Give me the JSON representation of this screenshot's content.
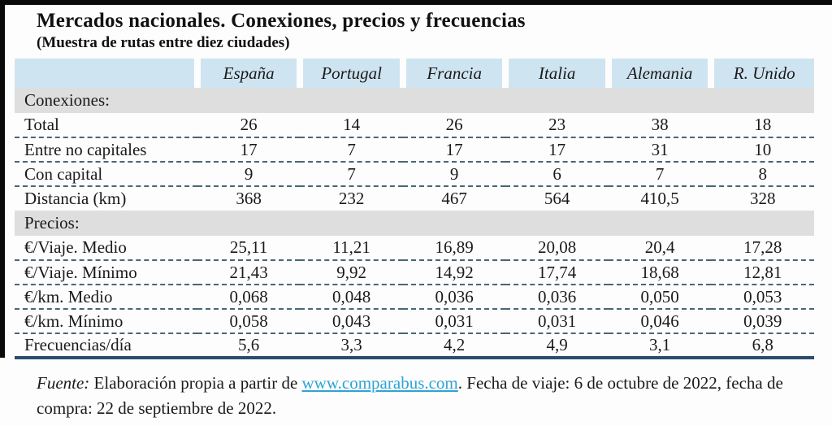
{
  "title": "Mercados nacionales. Conexiones, precios y frecuencias",
  "subtitle": "(Muestra de rutas entre diez ciudades)",
  "table": {
    "columns": [
      "España",
      "Portugal",
      "Francia",
      "Italia",
      "Alemania",
      "R. Unido"
    ],
    "rows": {
      "conexiones_header": "Conexiones:",
      "total": {
        "label": "Total",
        "values": [
          "26",
          "14",
          "26",
          "23",
          "38",
          "18"
        ]
      },
      "entre_no_capitales": {
        "label": "Entre no capitales",
        "values": [
          "17",
          "7",
          "17",
          "17",
          "31",
          "10"
        ]
      },
      "con_capital": {
        "label": "Con capital",
        "values": [
          "9",
          "7",
          "9",
          "6",
          "7",
          "8"
        ]
      },
      "distancia": {
        "label": "Distancia (km)",
        "values": [
          "368",
          "232",
          "467",
          "564",
          "410,5",
          "328"
        ]
      },
      "precios_header": "Precios:",
      "viaje_medio": {
        "label": "€/Viaje. Medio",
        "values": [
          "25,11",
          "11,21",
          "16,89",
          "20,08",
          "20,4",
          "17,28"
        ]
      },
      "viaje_minimo": {
        "label": "€/Viaje. Mínimo",
        "values": [
          "21,43",
          "9,92",
          "14,92",
          "17,74",
          "18,68",
          "12,81"
        ]
      },
      "km_medio": {
        "label": "€/km. Medio",
        "values": [
          "0,068",
          "0,048",
          "0,036",
          "0,036",
          "0,050",
          "0,053"
        ]
      },
      "km_minimo": {
        "label": "€/km. Mínimo",
        "values": [
          "0,058",
          "0,043",
          "0,031",
          "0,031",
          "0,046",
          "0,039"
        ]
      },
      "frecuencias": {
        "label": "Frecuencias/día",
        "values": [
          "5,6",
          "3,3",
          "4,2",
          "4,9",
          "3,1",
          "6,8"
        ]
      }
    }
  },
  "footer": {
    "fuente_label": "Fuente:",
    "text_before_link": " Elaboración propia a partir de ",
    "link_text": "www.comparabus.com",
    "text_after_link": ". Fecha de viaje: 6 de octubre de 2022, fecha de compra: 22 de septiembre de 2022."
  },
  "colors": {
    "header_blue": "#cfe4f1",
    "section_gray": "#dedede",
    "dashed_line": "#4a6674",
    "bottom_rule": "#2b4d6d",
    "link_blue": "#2fa3d6",
    "frame_black": "#0a0a0a"
  }
}
